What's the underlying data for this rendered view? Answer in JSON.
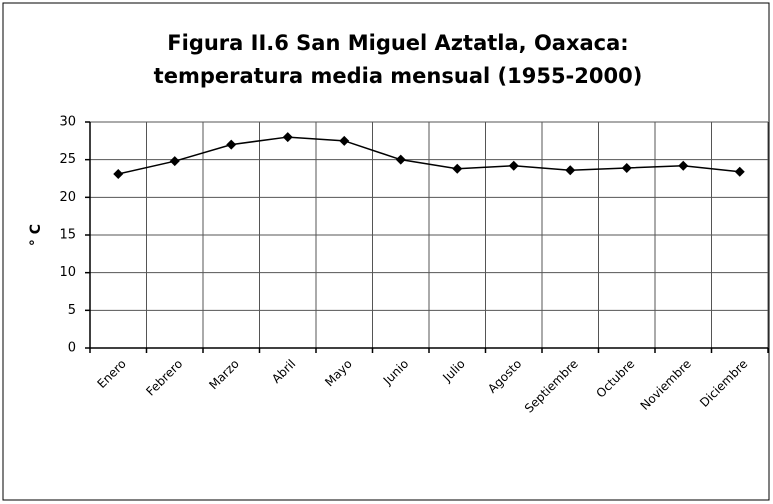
{
  "chart_data": {
    "type": "line",
    "title": [
      "Figura II.6 San Miguel Aztatla, Oaxaca:",
      "temperatura media mensual (1955-2000)"
    ],
    "y_label": "° C",
    "categories": [
      "Enero",
      "Febrero",
      "Marzo",
      "Abril",
      "Mayo",
      "Junio",
      "Julio",
      "Agosto",
      "Septiembre",
      "Octubre",
      "Noviembre",
      "Diciembre"
    ],
    "series": [
      {
        "name": "Temperatura media",
        "color": "#000000",
        "values": [
          23.1,
          24.8,
          27.0,
          28.0,
          27.5,
          25.0,
          23.8,
          24.2,
          23.6,
          23.9,
          24.2,
          23.4
        ]
      }
    ],
    "ylim": [
      0,
      30
    ],
    "yticks": [
      0,
      5,
      10,
      15,
      20,
      25,
      30
    ],
    "grid": true
  }
}
